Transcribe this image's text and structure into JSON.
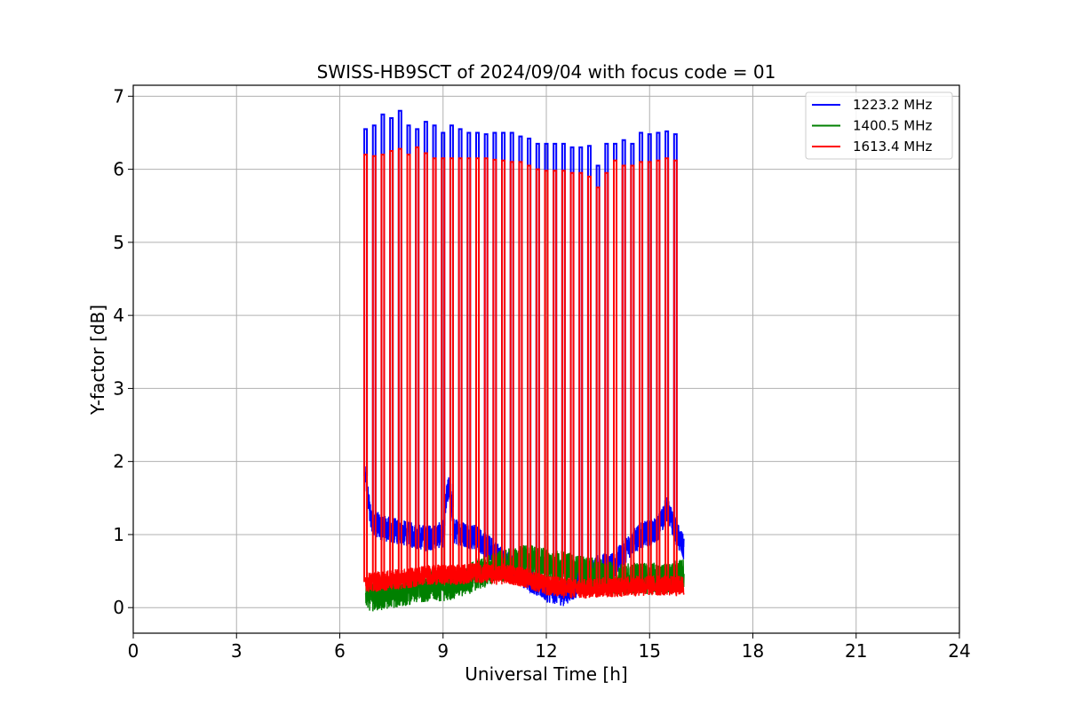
{
  "chart_data": {
    "type": "line",
    "title": "SWISS-HB9SCT of 2024/09/04 with focus code = 01",
    "xlabel": "Universal Time [h]",
    "ylabel": "Y-factor [dB]",
    "xlim": [
      0,
      24
    ],
    "ylim": [
      -0.35,
      7.15
    ],
    "xticks": [
      0,
      3,
      6,
      9,
      12,
      15,
      18,
      21,
      24
    ],
    "yticks": [
      0,
      1,
      2,
      3,
      4,
      5,
      6,
      7
    ],
    "grid": true,
    "legend_position": "top-right",
    "data_range_hours": [
      6.75,
      16.0
    ],
    "series": [
      {
        "name": "1223.2 MHz",
        "color": "#0000ff",
        "baseline_points": [
          [
            6.75,
            1.8
          ],
          [
            6.9,
            1.2
          ],
          [
            7.2,
            1.1
          ],
          [
            7.6,
            1.05
          ],
          [
            8.0,
            1.0
          ],
          [
            8.5,
            0.95
          ],
          [
            9.0,
            1.0
          ],
          [
            9.1,
            1.5
          ],
          [
            9.2,
            1.7
          ],
          [
            9.3,
            1.05
          ],
          [
            10.0,
            0.95
          ],
          [
            10.5,
            0.75
          ],
          [
            11.0,
            0.55
          ],
          [
            11.5,
            0.4
          ],
          [
            12.0,
            0.25
          ],
          [
            12.5,
            0.2
          ],
          [
            13.0,
            0.35
          ],
          [
            13.5,
            0.55
          ],
          [
            14.0,
            0.6
          ],
          [
            14.4,
            0.85
          ],
          [
            14.8,
            1.0
          ],
          [
            15.2,
            1.05
          ],
          [
            15.5,
            1.35
          ],
          [
            15.8,
            1.0
          ],
          [
            16.0,
            0.8
          ]
        ],
        "peaks": [
          [
            6.75,
            6.55
          ],
          [
            7.0,
            6.6
          ],
          [
            7.25,
            6.75
          ],
          [
            7.5,
            6.7
          ],
          [
            7.75,
            6.8
          ],
          [
            8.0,
            6.6
          ],
          [
            8.25,
            6.55
          ],
          [
            8.5,
            6.65
          ],
          [
            8.75,
            6.6
          ],
          [
            9.0,
            6.5
          ],
          [
            9.25,
            6.6
          ],
          [
            9.5,
            6.55
          ],
          [
            9.75,
            6.5
          ],
          [
            10.0,
            6.5
          ],
          [
            10.25,
            6.48
          ],
          [
            10.5,
            6.5
          ],
          [
            10.75,
            6.5
          ],
          [
            11.0,
            6.5
          ],
          [
            11.25,
            6.45
          ],
          [
            11.5,
            6.42
          ],
          [
            11.75,
            6.35
          ],
          [
            12.0,
            6.35
          ],
          [
            12.25,
            6.35
          ],
          [
            12.5,
            6.35
          ],
          [
            12.75,
            6.3
          ],
          [
            13.0,
            6.3
          ],
          [
            13.25,
            6.32
          ],
          [
            13.5,
            6.05
          ],
          [
            13.75,
            6.35
          ],
          [
            14.0,
            6.35
          ],
          [
            14.25,
            6.4
          ],
          [
            14.5,
            6.35
          ],
          [
            14.75,
            6.5
          ],
          [
            15.0,
            6.48
          ],
          [
            15.25,
            6.5
          ],
          [
            15.5,
            6.52
          ],
          [
            15.75,
            6.48
          ]
        ]
      },
      {
        "name": "1400.5 MHz",
        "color": "#008000",
        "baseline_points": [
          [
            6.75,
            0.2
          ],
          [
            7.0,
            0.15
          ],
          [
            7.5,
            0.2
          ],
          [
            8.0,
            0.25
          ],
          [
            8.5,
            0.3
          ],
          [
            9.0,
            0.3
          ],
          [
            9.5,
            0.35
          ],
          [
            10.0,
            0.45
          ],
          [
            10.5,
            0.55
          ],
          [
            11.0,
            0.6
          ],
          [
            11.5,
            0.65
          ],
          [
            12.0,
            0.6
          ],
          [
            12.5,
            0.55
          ],
          [
            13.0,
            0.5
          ],
          [
            13.5,
            0.45
          ],
          [
            14.0,
            0.4
          ],
          [
            14.5,
            0.4
          ],
          [
            15.0,
            0.4
          ],
          [
            15.5,
            0.4
          ],
          [
            16.0,
            0.45
          ]
        ],
        "peaks": []
      },
      {
        "name": "1613.4 MHz",
        "color": "#ff0000",
        "baseline_points": [
          [
            6.75,
            0.35
          ],
          [
            7.0,
            0.35
          ],
          [
            7.5,
            0.38
          ],
          [
            8.0,
            0.4
          ],
          [
            8.5,
            0.45
          ],
          [
            9.0,
            0.45
          ],
          [
            9.5,
            0.45
          ],
          [
            10.0,
            0.48
          ],
          [
            10.5,
            0.45
          ],
          [
            11.0,
            0.45
          ],
          [
            11.5,
            0.4
          ],
          [
            12.0,
            0.3
          ],
          [
            12.5,
            0.28
          ],
          [
            13.0,
            0.25
          ],
          [
            13.5,
            0.28
          ],
          [
            14.0,
            0.28
          ],
          [
            14.5,
            0.3
          ],
          [
            15.0,
            0.3
          ],
          [
            15.5,
            0.3
          ],
          [
            16.0,
            0.3
          ]
        ],
        "peaks": [
          [
            6.75,
            6.2
          ],
          [
            7.0,
            6.18
          ],
          [
            7.25,
            6.2
          ],
          [
            7.5,
            6.25
          ],
          [
            7.75,
            6.28
          ],
          [
            8.0,
            6.2
          ],
          [
            8.25,
            6.3
          ],
          [
            8.5,
            6.22
          ],
          [
            8.75,
            6.15
          ],
          [
            9.0,
            6.15
          ],
          [
            9.25,
            6.15
          ],
          [
            9.5,
            6.15
          ],
          [
            9.75,
            6.15
          ],
          [
            10.0,
            6.15
          ],
          [
            10.25,
            6.15
          ],
          [
            10.5,
            6.13
          ],
          [
            10.75,
            6.12
          ],
          [
            11.0,
            6.1
          ],
          [
            11.25,
            6.1
          ],
          [
            11.5,
            6.05
          ],
          [
            11.75,
            6.0
          ],
          [
            12.0,
            5.98
          ],
          [
            12.25,
            5.98
          ],
          [
            12.5,
            5.98
          ],
          [
            12.75,
            5.95
          ],
          [
            13.0,
            5.95
          ],
          [
            13.25,
            5.9
          ],
          [
            13.5,
            5.75
          ],
          [
            13.75,
            5.95
          ],
          [
            14.0,
            6.12
          ],
          [
            14.25,
            6.05
          ],
          [
            14.5,
            6.05
          ],
          [
            14.75,
            6.1
          ],
          [
            15.0,
            6.1
          ],
          [
            15.25,
            6.12
          ],
          [
            15.5,
            6.15
          ],
          [
            15.75,
            6.12
          ]
        ]
      }
    ]
  }
}
